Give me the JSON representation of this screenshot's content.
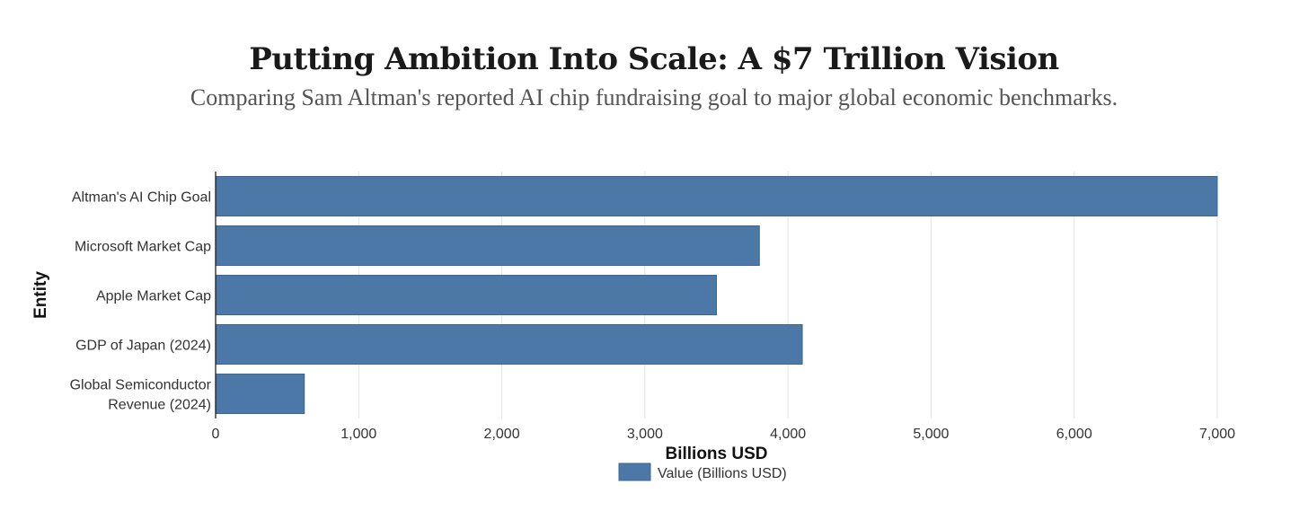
{
  "title": "Putting Ambition Into Scale: A $7 Trillion Vision",
  "subtitle": "Comparing Sam Altman's reported AI chip fundraising goal to major global economic benchmarks.",
  "chart_data": {
    "type": "bar",
    "orientation": "horizontal",
    "categories": [
      [
        "Altman's AI Chip Goal"
      ],
      [
        "Microsoft Market Cap"
      ],
      [
        "Apple Market Cap"
      ],
      [
        "GDP of Japan (2024)"
      ],
      [
        "Global Semiconductor",
        "Revenue (2024)"
      ]
    ],
    "series": [
      {
        "name": "Value (Billions USD)",
        "values": [
          7000,
          3800,
          3500,
          4100,
          620
        ],
        "color": "#4c78a8"
      }
    ],
    "xlabel": "Billions USD",
    "ylabel": "Entity",
    "xlim": [
      0,
      7000
    ],
    "xticks": [
      0,
      1000,
      2000,
      3000,
      4000,
      5000,
      6000,
      7000
    ],
    "xtick_labels": [
      "0",
      "1,000",
      "2,000",
      "3,000",
      "4,000",
      "5,000",
      "6,000",
      "7,000"
    ],
    "grid": true,
    "legend_position": "bottom-center"
  }
}
